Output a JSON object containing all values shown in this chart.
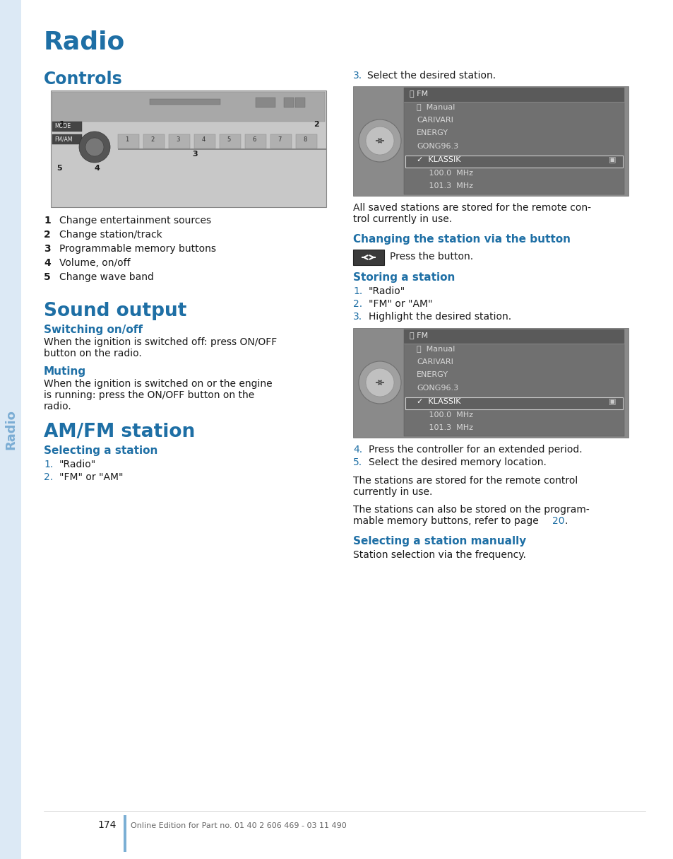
{
  "page_bg": "#ffffff",
  "title": "Radio",
  "title_color": "#1e6fa5",
  "sidebar_text": "Radio",
  "sidebar_color": "#7badd4",
  "sidebar_bg": "#dce9f5",
  "section_color": "#1e6fa5",
  "body_color": "#1a1a1a",
  "controls_items": [
    {
      "num": "1",
      "text": "Change entertainment sources"
    },
    {
      "num": "2",
      "text": "Change station/track"
    },
    {
      "num": "3",
      "text": "Programmable memory buttons"
    },
    {
      "num": "4",
      "text": "Volume, on/off"
    },
    {
      "num": "5",
      "text": "Change wave band"
    }
  ],
  "selecting_station_items": [
    {
      "num": "1.",
      "text": "\"Radio\""
    },
    {
      "num": "2.",
      "text": "\"FM\" or \"AM\""
    }
  ],
  "storing_station_items": [
    {
      "num": "1.",
      "text": "\"Radio\""
    },
    {
      "num": "2.",
      "text": "\"FM\" or \"AM\""
    },
    {
      "num": "3.",
      "text": "Highlight the desired station."
    }
  ],
  "storing_after_items": [
    {
      "num": "4.",
      "text": "Press the controller for an extended period."
    },
    {
      "num": "5.",
      "text": "Select the desired memory location."
    }
  ],
  "page_number": "174",
  "footer_text": "Online Edition for Part no. 01 40 2 606 469 - 03 11 490",
  "accent_bar_color": "#7bafd4",
  "link_color": "#1e6fa5",
  "fm_items": [
    "⌕  Manual",
    "CARIVARI",
    "ENERGY",
    "GONG96.3",
    "✓  KLASSIK",
    "     100.0  MHz",
    "     101.3  MHz"
  ],
  "fm_highlight_idx": 4
}
